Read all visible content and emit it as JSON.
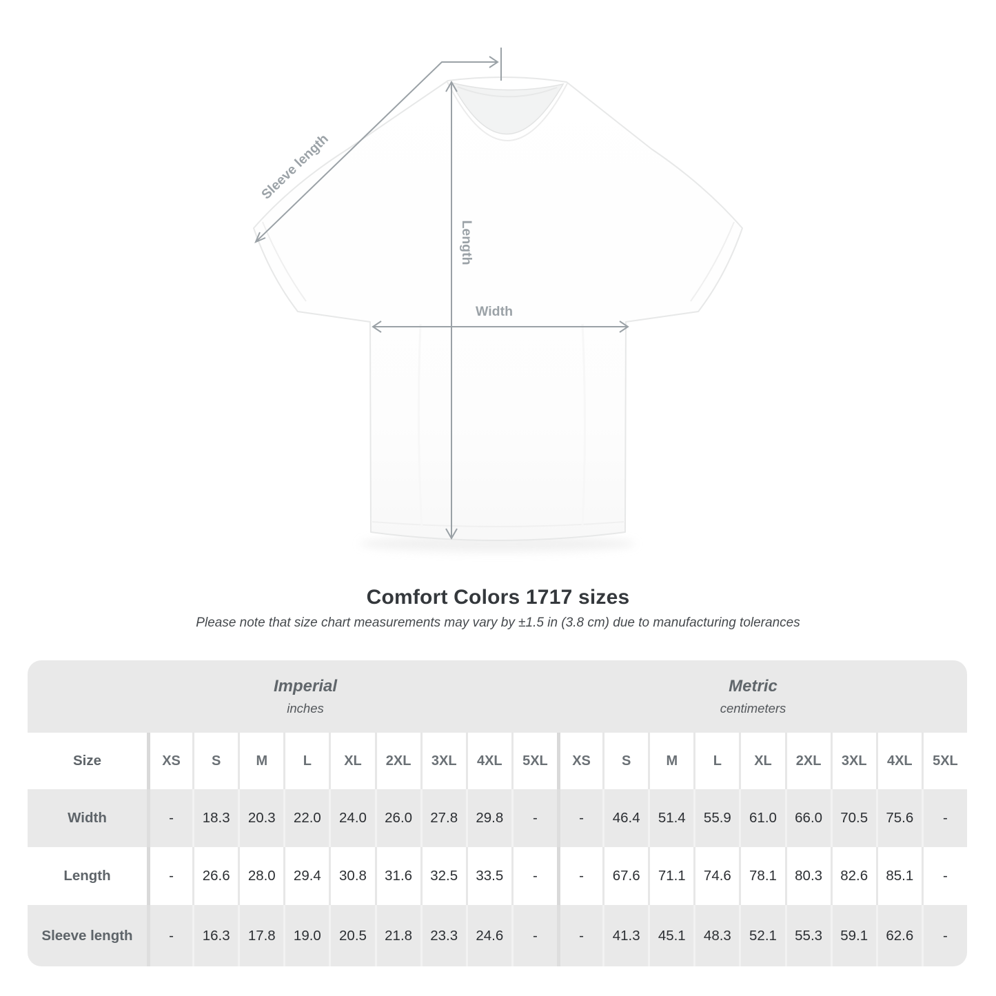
{
  "title": "Comfort Colors 1717 sizes",
  "subtitle": "Please note that size chart measurements may vary by ±1.5 in (3.8 cm) due to manufacturing tolerances",
  "colors": {
    "table_band_gray": "#e9e9e9",
    "arrow_gray": "#9aa1a6",
    "title_text": "#34383c",
    "data_text": "#2c2f33",
    "header_text": "#6a7075"
  },
  "diagram": {
    "labels": {
      "sleeve": "Sleeve length",
      "length": "Length",
      "width": "Width"
    }
  },
  "table": {
    "sections": [
      {
        "title": "Imperial",
        "subtitle": "inches"
      },
      {
        "title": "Metric",
        "subtitle": "centimeters"
      }
    ],
    "size_label": "Size",
    "sizes": [
      "XS",
      "S",
      "M",
      "L",
      "XL",
      "2XL",
      "3XL",
      "4XL",
      "5XL"
    ],
    "rows": [
      {
        "label": "Width",
        "imperial": [
          "-",
          "18.3",
          "20.3",
          "22.0",
          "24.0",
          "26.0",
          "27.8",
          "29.8",
          "-"
        ],
        "metric": [
          "-",
          "46.4",
          "51.4",
          "55.9",
          "61.0",
          "66.0",
          "70.5",
          "75.6",
          "-"
        ]
      },
      {
        "label": "Length",
        "imperial": [
          "-",
          "26.6",
          "28.0",
          "29.4",
          "30.8",
          "31.6",
          "32.5",
          "33.5",
          "-"
        ],
        "metric": [
          "-",
          "67.6",
          "71.1",
          "74.6",
          "78.1",
          "80.3",
          "82.6",
          "85.1",
          "-"
        ]
      },
      {
        "label": "Sleeve length",
        "imperial": [
          "-",
          "16.3",
          "17.8",
          "19.0",
          "20.5",
          "21.8",
          "23.3",
          "24.6",
          "-"
        ],
        "metric": [
          "-",
          "41.3",
          "45.1",
          "48.3",
          "52.1",
          "55.3",
          "59.1",
          "62.6",
          "-"
        ]
      }
    ]
  },
  "chart_data": {
    "type": "table",
    "title": "Comfort Colors 1717 sizes",
    "note": "Please note that size chart measurements may vary by ±1.5 in (3.8 cm) due to manufacturing tolerances",
    "column_groups": [
      "Imperial (inches)",
      "Metric (centimeters)"
    ],
    "columns": [
      "Size",
      "XS",
      "S",
      "M",
      "L",
      "XL",
      "2XL",
      "3XL",
      "4XL",
      "5XL",
      "XS",
      "S",
      "M",
      "L",
      "XL",
      "2XL",
      "3XL",
      "4XL",
      "5XL"
    ],
    "rows": [
      [
        "Width",
        "-",
        "18.3",
        "20.3",
        "22.0",
        "24.0",
        "26.0",
        "27.8",
        "29.8",
        "-",
        "-",
        "46.4",
        "51.4",
        "55.9",
        "61.0",
        "66.0",
        "70.5",
        "75.6",
        "-"
      ],
      [
        "Length",
        "-",
        "26.6",
        "28.0",
        "29.4",
        "30.8",
        "31.6",
        "32.5",
        "33.5",
        "-",
        "-",
        "67.6",
        "71.1",
        "74.6",
        "78.1",
        "80.3",
        "82.6",
        "85.1",
        "-"
      ],
      [
        "Sleeve length",
        "-",
        "16.3",
        "17.8",
        "19.0",
        "20.5",
        "21.8",
        "23.3",
        "24.6",
        "-",
        "-",
        "41.3",
        "45.1",
        "48.3",
        "52.1",
        "55.3",
        "59.1",
        "62.6",
        "-"
      ]
    ]
  }
}
